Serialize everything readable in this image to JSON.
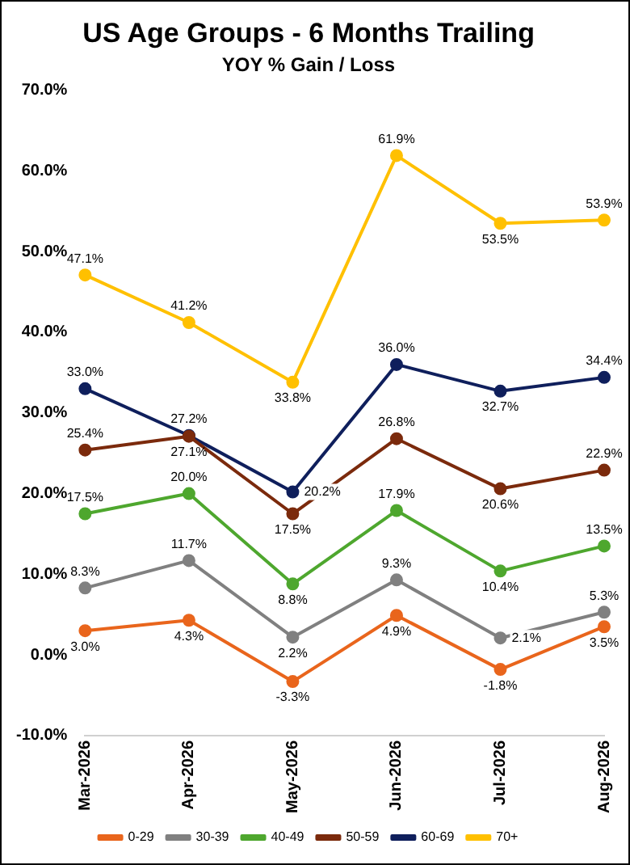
{
  "chart_data": {
    "type": "line",
    "title": "US Age Groups - 6 Months Trailing",
    "subtitle": "YOY % Gain / Loss",
    "categories": [
      "Mar-2026",
      "Apr-2026",
      "May-2026",
      "Jun-2026",
      "Jul-2026",
      "Aug-2026"
    ],
    "series": [
      {
        "name": "0-29",
        "color": "#e9651c",
        "values": [
          3.0,
          4.3,
          -3.3,
          4.9,
          -1.8,
          3.5
        ],
        "value_labels": [
          "3.0%",
          "4.3%",
          "-3.3%",
          "4.9%",
          "-1.8%",
          "3.5%"
        ]
      },
      {
        "name": "30-39",
        "color": "#808080",
        "values": [
          8.3,
          11.7,
          2.2,
          9.3,
          2.1,
          5.3
        ],
        "value_labels": [
          "8.3%",
          "11.7%",
          "2.2%",
          "9.3%",
          "2.1%",
          "5.3%"
        ]
      },
      {
        "name": "40-49",
        "color": "#4ea72e",
        "values": [
          17.5,
          20.0,
          8.8,
          17.9,
          10.4,
          13.5
        ],
        "value_labels": [
          "17.5%",
          "20.0%",
          "8.8%",
          "17.9%",
          "10.4%",
          "13.5%"
        ]
      },
      {
        "name": "50-59",
        "color": "#7b2a0c",
        "values": [
          25.4,
          27.1,
          17.5,
          26.8,
          20.6,
          22.9
        ],
        "value_labels": [
          "25.4%",
          "27.1%",
          "17.5%",
          "26.8%",
          "20.6%",
          "22.9%"
        ]
      },
      {
        "name": "60-69",
        "color": "#0f1f5c",
        "values": [
          33.0,
          27.2,
          20.2,
          36.0,
          32.7,
          34.4
        ],
        "value_labels": [
          "33.0%",
          "27.2%",
          "20.2%",
          "36.0%",
          "32.7%",
          "34.4%"
        ]
      },
      {
        "name": "70+",
        "color": "#ffc000",
        "values": [
          47.1,
          41.2,
          33.8,
          61.9,
          53.5,
          53.9
        ],
        "value_labels": [
          "47.1%",
          "41.2%",
          "33.8%",
          "61.9%",
          "53.5%",
          "53.9%"
        ]
      }
    ],
    "ylim": [
      -10,
      70
    ],
    "yticks": [
      {
        "value": -10,
        "label": "-10.0%"
      },
      {
        "value": 0,
        "label": "0.0%"
      },
      {
        "value": 10,
        "label": "10.0%"
      },
      {
        "value": 20,
        "label": "20.0%"
      },
      {
        "value": 30,
        "label": "30.0%"
      },
      {
        "value": 40,
        "label": "40.0%"
      },
      {
        "value": 50,
        "label": "50.0%"
      },
      {
        "value": 60,
        "label": "60.0%"
      },
      {
        "value": 70,
        "label": "70.0%"
      }
    ],
    "grid": false,
    "legend": "bottom",
    "marker": "circle",
    "line_style": "solid"
  }
}
